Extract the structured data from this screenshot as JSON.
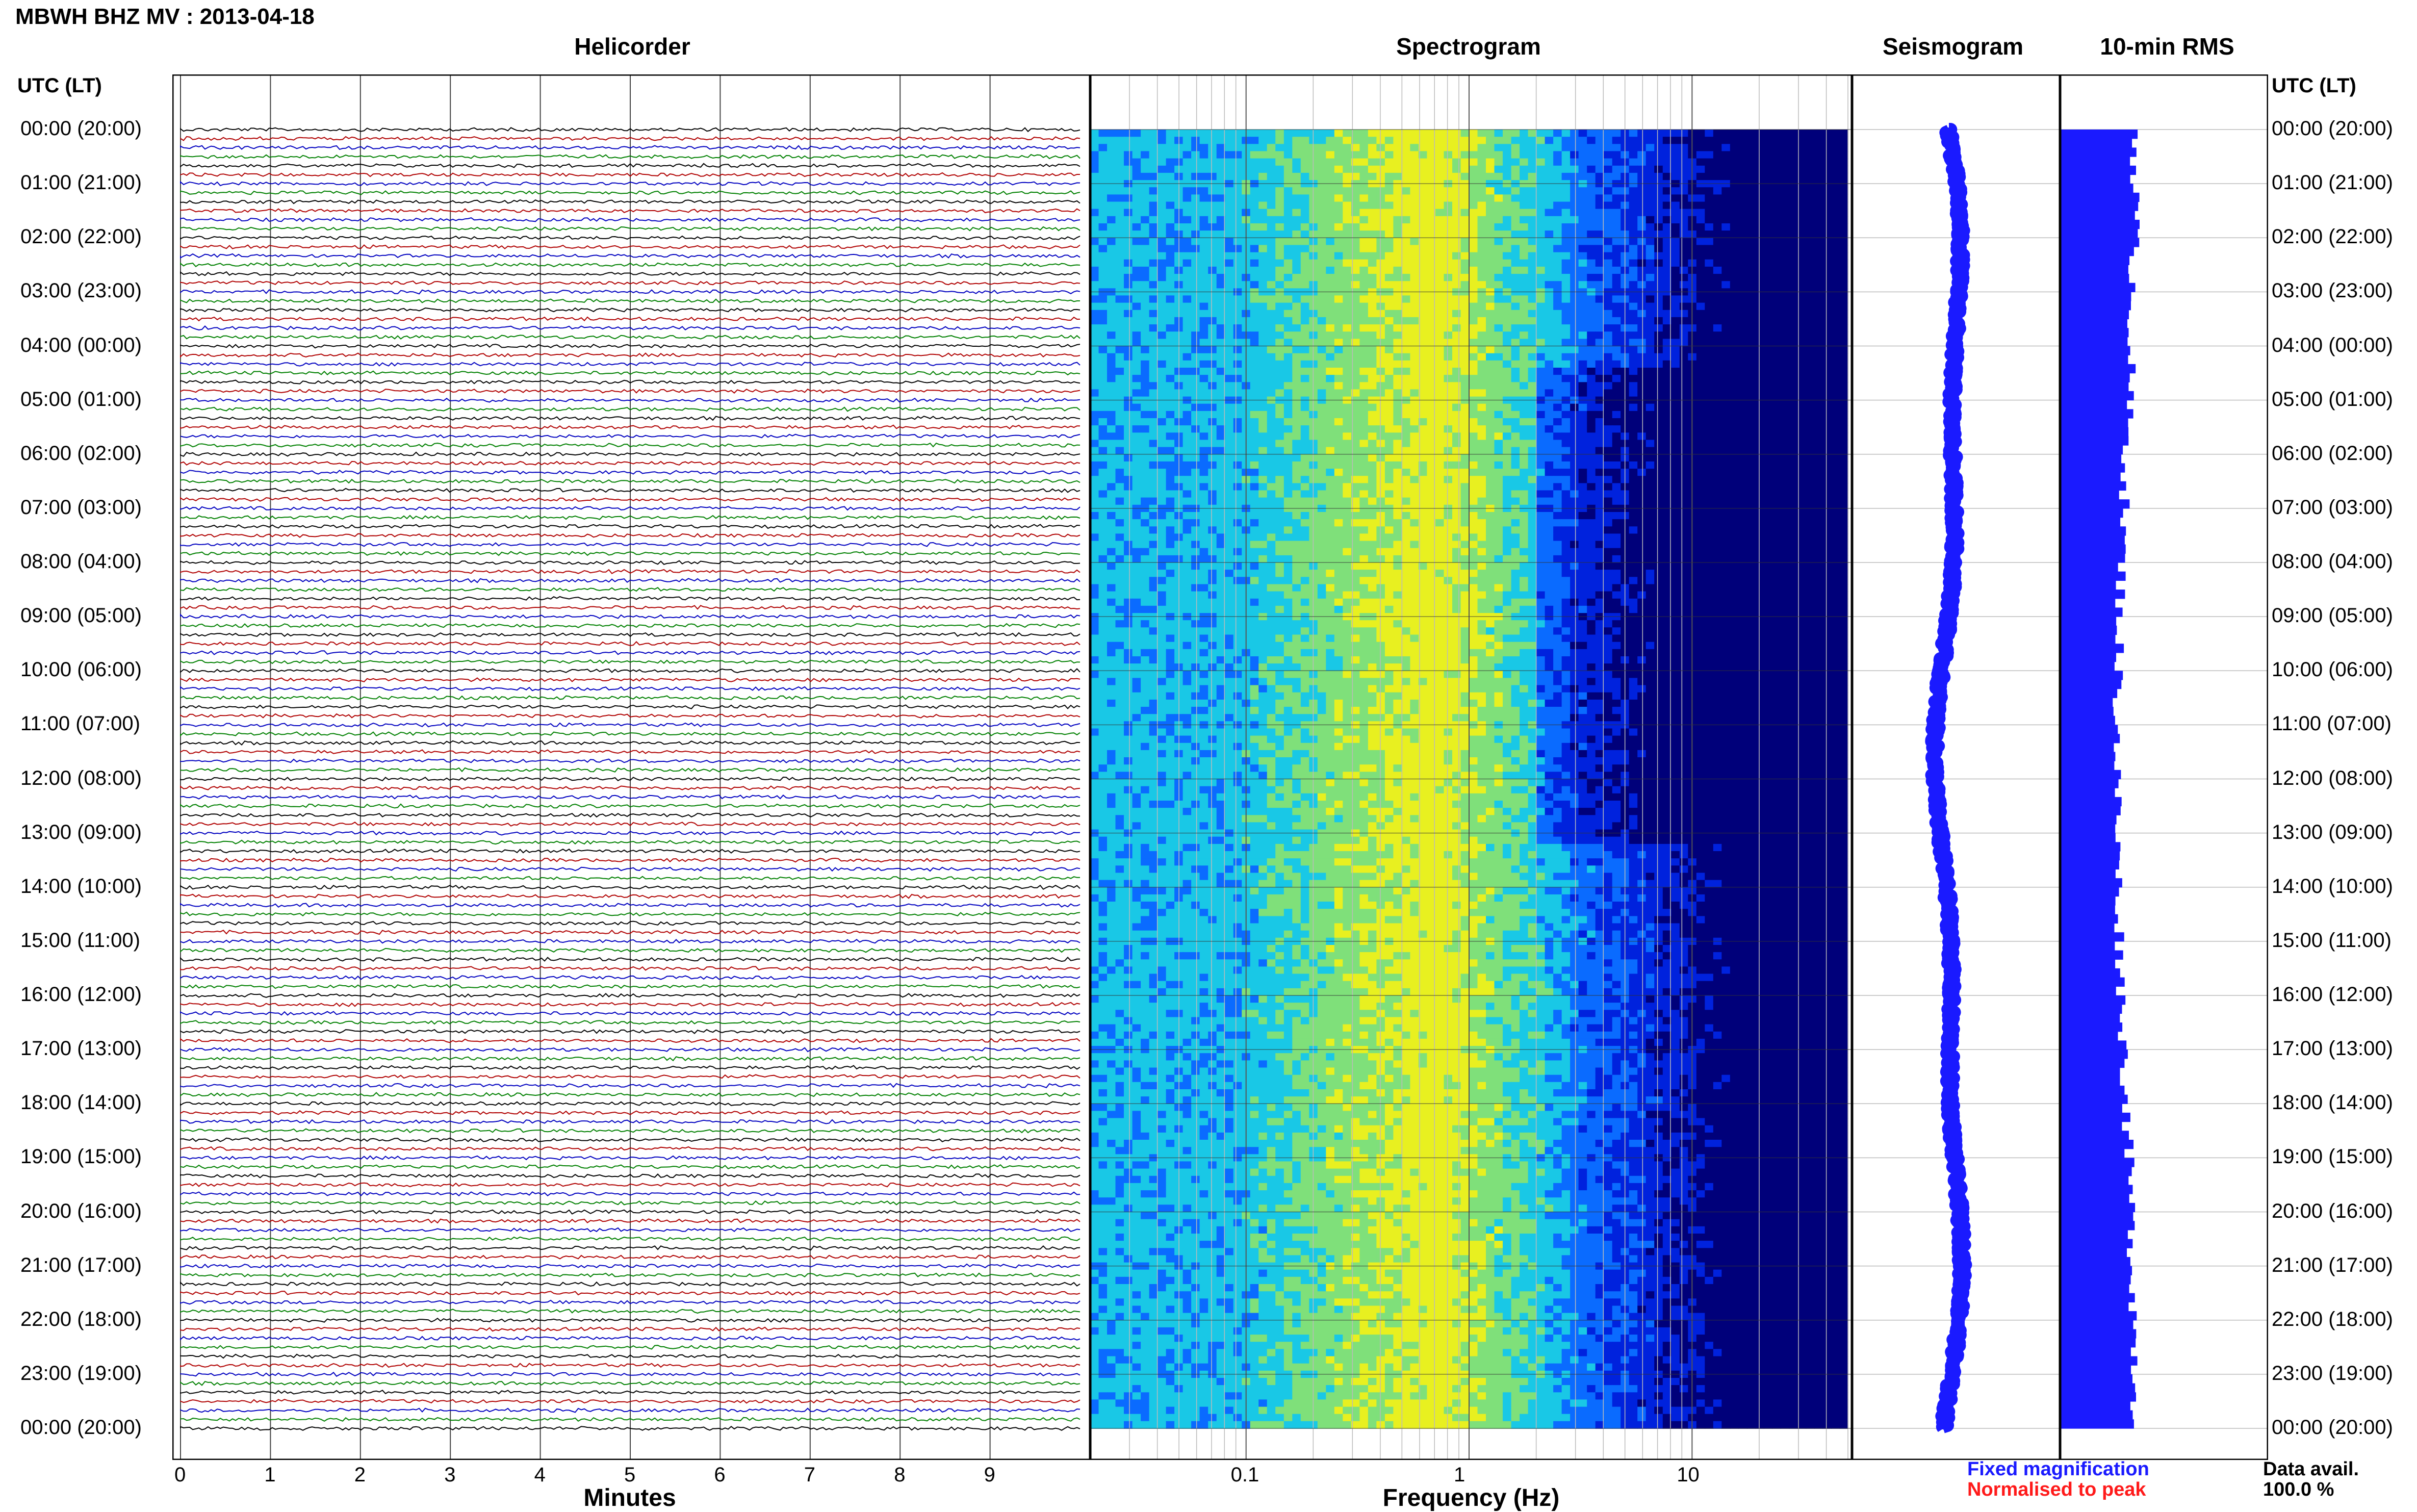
{
  "page": {
    "title": "MBWH BHZ MV : 2013-04-18",
    "utc_label_left": "UTC (LT)",
    "utc_label_right": "UTC (LT)"
  },
  "panels": {
    "helicorder": "Helicorder",
    "spectrogram": "Spectrogram",
    "seismogram": "Seismogram",
    "rms": "10-min RMS"
  },
  "axes": {
    "minutes_label": "Minutes",
    "frequency_label": "Frequency (Hz)",
    "minute_ticks": [
      "0",
      "1",
      "2",
      "3",
      "4",
      "5",
      "6",
      "7",
      "8",
      "9"
    ],
    "freq_ticks": [
      "0.1",
      "1",
      "10"
    ]
  },
  "legend": {
    "fixed": "Fixed magnification",
    "normalised": "Normalised to peak",
    "fixed_color": "#1a1aff",
    "normalised_color": "#ff1a1a"
  },
  "data_avail": {
    "label": "Data avail.",
    "value": "100.0 %"
  },
  "chart_data": {
    "type": "heatmap",
    "time_labels": [
      "00:00 (20:00)",
      "01:00 (21:00)",
      "02:00 (22:00)",
      "03:00 (23:00)",
      "04:00 (00:00)",
      "05:00 (01:00)",
      "06:00 (02:00)",
      "07:00 (03:00)",
      "08:00 (04:00)",
      "09:00 (05:00)",
      "10:00 (06:00)",
      "11:00 (07:00)",
      "12:00 (08:00)",
      "13:00 (09:00)",
      "14:00 (10:00)",
      "15:00 (11:00)",
      "16:00 (12:00)",
      "17:00 (13:00)",
      "18:00 (14:00)",
      "19:00 (15:00)",
      "20:00 (16:00)",
      "21:00 (17:00)",
      "22:00 (18:00)",
      "23:00 (19:00)",
      "00:00 (20:00)"
    ],
    "helicorder_trace_colors": [
      "#000000",
      "#b00000",
      "#0000c0",
      "#008000"
    ],
    "minutes_range": [
      0,
      10
    ],
    "frequency_range_hz": [
      0.02,
      50
    ],
    "spectrogram_colors": [
      "#00007a",
      "#0022dd",
      "#0a6bff",
      "#19c8e6",
      "#7fe07a",
      "#e8f020"
    ],
    "rms_color": "#1a1aff",
    "seismogram_color": "#1a1aff"
  }
}
